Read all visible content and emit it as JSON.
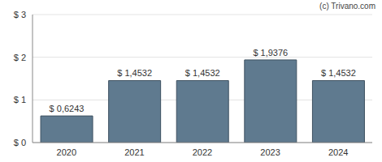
{
  "chart_data": {
    "type": "bar",
    "annotation": "(c) Trivano.com",
    "categories": [
      "2020",
      "2021",
      "2022",
      "2023",
      "2024"
    ],
    "values": [
      0.6243,
      1.4532,
      1.4532,
      1.9376,
      1.4532
    ],
    "value_labels": [
      "$ 0,6243",
      "$ 1,4532",
      "$ 1,4532",
      "$ 1,9376",
      "$ 1,4532"
    ],
    "data_labels": true,
    "color": "#5f7a8f",
    "ylim": [
      0,
      3
    ],
    "yticks": [
      {
        "value": 0,
        "label": "$ 0"
      },
      {
        "value": 1,
        "label": "$ 1"
      },
      {
        "value": 2,
        "label": "$ 2"
      },
      {
        "value": 3,
        "label": "$ 3"
      }
    ],
    "grid": true
  }
}
